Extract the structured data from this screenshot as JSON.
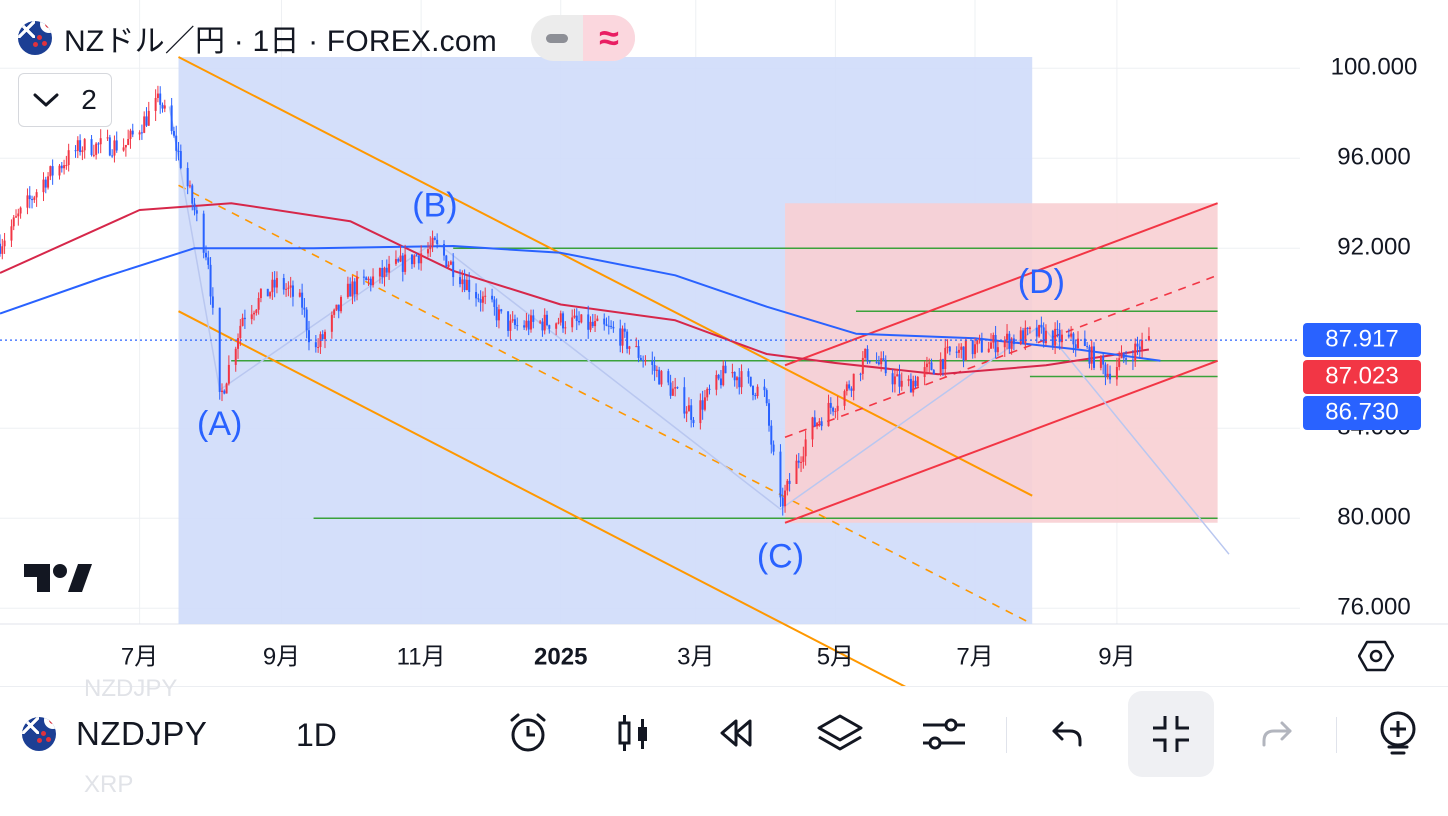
{
  "legend": {
    "title": "NZドル／円 · 1日 · FOREX.com",
    "collapse_count": "2"
  },
  "toolbar": {
    "symbol": "NZDJPY",
    "interval": "1D",
    "ghost_above": "NZDJPY",
    "ghost_below": "XRP"
  },
  "colors": {
    "up": "#f23645",
    "down": "#2962ff",
    "channel_down_fill": "#cfdbf9",
    "channel_down_line": "#ff9800",
    "channel_up_fill": "#f8cfd3",
    "channel_up_line": "#f23645",
    "ma_red": "#d6274a",
    "ma_blue": "#2962ff",
    "hlines": "#3aa23a",
    "wave_labels": "#2962ff"
  },
  "icons": [
    "alarm-icon",
    "candles-icon",
    "replay-icon",
    "layers-icon",
    "sliders-icon",
    "undo-icon",
    "fullscreen-exit-icon",
    "redo-icon",
    "add-indicator-icon",
    "settings-hex-icon",
    "tradingview-logo"
  ],
  "chart_data": {
    "type": "candlestick",
    "y_axis": {
      "min": 75.3,
      "max": 100.5,
      "ticks": [
        "100.000",
        "96.000",
        "92.000",
        "84.000",
        "80.000",
        "76.000"
      ],
      "tick_values": [
        100,
        96,
        92,
        84,
        80,
        76
      ]
    },
    "x_axis": {
      "ticks": [
        "7月",
        "9月",
        "11月",
        "2025",
        "3月",
        "5月",
        "7月",
        "9月"
      ],
      "tick_dates": [
        "2024-07-01",
        "2024-09-01",
        "2024-11-01",
        "2025-01-01",
        "2025-03-01",
        "2025-05-01",
        "2025-07-01",
        "2025-09-01"
      ],
      "range": [
        "2024-05-01",
        "2025-11-20"
      ]
    },
    "price_labels": [
      {
        "text": "87.917",
        "value": 87.917,
        "color": "#2962ff"
      },
      {
        "text": "87.023",
        "value": 87.023,
        "color": "#f23645"
      },
      {
        "text": "86.730",
        "value": 86.73,
        "color": "#2962ff"
      }
    ],
    "current_price": 87.917,
    "close_path": [
      [
        "2024-05-01",
        92.2
      ],
      [
        "2024-05-20",
        95.0
      ],
      [
        "2024-06-05",
        96.5
      ],
      [
        "2024-06-25",
        96.6
      ],
      [
        "2024-07-10",
        98.6
      ],
      [
        "2024-07-18",
        96.2
      ],
      [
        "2024-07-31",
        91.5
      ],
      [
        "2024-08-05",
        85.2
      ],
      [
        "2024-08-15",
        89.0
      ],
      [
        "2024-08-31",
        90.5
      ],
      [
        "2024-09-10",
        89.5
      ],
      [
        "2024-09-15",
        87.3
      ],
      [
        "2024-10-01",
        90.2
      ],
      [
        "2024-10-15",
        90.8
      ],
      [
        "2024-11-01",
        91.8
      ],
      [
        "2024-11-07",
        92.1
      ],
      [
        "2024-11-25",
        90.0
      ],
      [
        "2024-12-10",
        88.5
      ],
      [
        "2025-01-01",
        88.8
      ],
      [
        "2025-01-25",
        88.3
      ],
      [
        "2025-02-10",
        86.7
      ],
      [
        "2025-02-28",
        84.6
      ],
      [
        "2025-03-15",
        86.6
      ],
      [
        "2025-03-31",
        85.5
      ],
      [
        "2025-04-07",
        80.5
      ],
      [
        "2025-04-20",
        84.0
      ],
      [
        "2025-05-05",
        85.6
      ],
      [
        "2025-05-15",
        87.3
      ],
      [
        "2025-05-31",
        85.8
      ],
      [
        "2025-06-20",
        87.3
      ],
      [
        "2025-07-10",
        87.8
      ],
      [
        "2025-07-28",
        88.2
      ],
      [
        "2025-08-15",
        87.8
      ],
      [
        "2025-08-28",
        86.5
      ],
      [
        "2025-09-10",
        87.6
      ],
      [
        "2025-09-15",
        87.917
      ]
    ],
    "moving_averages": [
      {
        "color": "#d6274a",
        "points": [
          [
            "2024-05-01",
            90.9
          ],
          [
            "2024-07-01",
            93.7
          ],
          [
            "2024-08-10",
            94.0
          ],
          [
            "2024-10-01",
            93.2
          ],
          [
            "2024-11-15",
            91.0
          ],
          [
            "2025-01-01",
            89.5
          ],
          [
            "2025-02-20",
            88.8
          ],
          [
            "2025-04-01",
            87.3
          ],
          [
            "2025-05-01",
            86.9
          ],
          [
            "2025-06-15",
            86.4
          ],
          [
            "2025-08-01",
            86.8
          ],
          [
            "2025-09-15",
            87.5
          ]
        ]
      },
      {
        "color": "#2962ff",
        "points": [
          [
            "2024-05-01",
            89.1
          ],
          [
            "2024-06-15",
            90.7
          ],
          [
            "2024-07-25",
            92.0
          ],
          [
            "2024-09-15",
            92.0
          ],
          [
            "2024-11-15",
            92.1
          ],
          [
            "2025-01-01",
            91.8
          ],
          [
            "2025-02-20",
            90.8
          ],
          [
            "2025-04-01",
            89.4
          ],
          [
            "2025-05-10",
            88.2
          ],
          [
            "2025-07-01",
            88.0
          ],
          [
            "2025-08-15",
            87.5
          ],
          [
            "2025-09-20",
            87.0
          ]
        ]
      }
    ],
    "horizontal_lines": [
      {
        "value": 92.0,
        "from": "2024-11-15",
        "to": "2025-10-15"
      },
      {
        "value": 89.2,
        "from": "2025-05-10",
        "to": "2025-10-15"
      },
      {
        "value": 87.0,
        "from": "2024-08-10",
        "to": "2025-10-15"
      },
      {
        "value": 86.3,
        "from": "2025-07-25",
        "to": "2025-10-15"
      },
      {
        "value": 80.0,
        "from": "2024-09-15",
        "to": "2025-10-15"
      }
    ],
    "channels": [
      {
        "color": "#ff9800",
        "fill": "#cfdbf9",
        "upper": [
          [
            "2024-07-18",
            100.5
          ],
          [
            "2025-07-26",
            81.0
          ]
        ],
        "mid": [
          [
            "2024-07-18",
            94.8
          ],
          [
            "2025-07-26",
            75.3
          ]
        ],
        "lower": [
          [
            "2024-07-18",
            89.2
          ],
          [
            "2025-07-26",
            69.6
          ]
        ],
        "box": {
          "from": "2024-07-18",
          "to": "2025-07-26",
          "top": 100.5,
          "bottom": 75.3
        }
      },
      {
        "color": "#f23645",
        "fill": "#f8cfd3",
        "upper": [
          [
            "2025-04-09",
            86.8
          ],
          [
            "2025-10-15",
            94.0
          ]
        ],
        "mid": [
          [
            "2025-04-09",
            83.6
          ],
          [
            "2025-10-15",
            90.8
          ]
        ],
        "lower": [
          [
            "2025-04-09",
            79.8
          ],
          [
            "2025-10-15",
            87.0
          ]
        ],
        "box": {
          "from": "2025-04-09",
          "to": "2025-10-15",
          "top": 94.0,
          "bottom": 79.8
        }
      }
    ],
    "wave_path": [
      [
        "2024-07-14",
        98.3
      ],
      [
        "2024-08-05",
        85.7
      ],
      [
        "2024-11-07",
        92.3
      ],
      [
        "2025-04-07",
        80.4
      ],
      [
        "2025-07-30",
        88.6
      ],
      [
        "2025-10-20",
        78.4
      ]
    ],
    "wave_labels": [
      {
        "text": "(A)",
        "date": "2024-08-05",
        "value": 84.1
      },
      {
        "text": "(B)",
        "date": "2024-11-07",
        "value": 93.8
      },
      {
        "text": "(C)",
        "date": "2025-04-07",
        "value": 78.2
      },
      {
        "text": "(D)",
        "date": "2025-07-30",
        "value": 90.4
      }
    ]
  }
}
